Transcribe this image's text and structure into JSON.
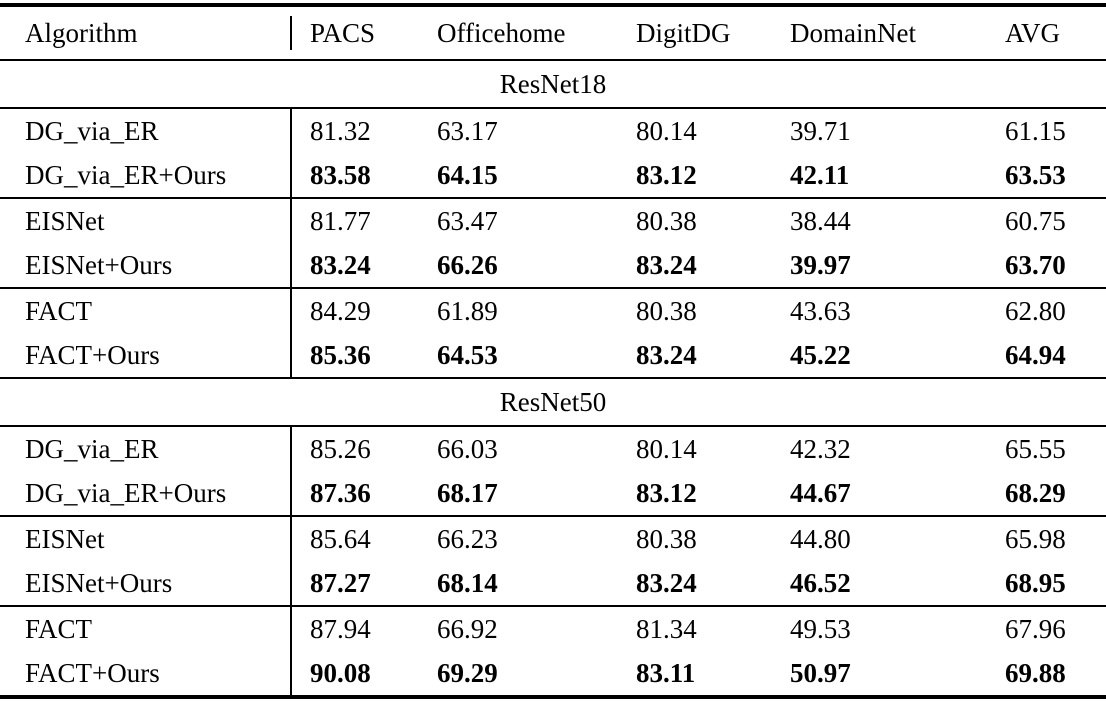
{
  "table": {
    "columns": [
      "Algorithm",
      "PACS",
      "Officehome",
      "DigitDG",
      "DomainNet",
      "AVG"
    ],
    "sections": [
      {
        "title": "ResNet18",
        "groups": [
          {
            "rows": [
              {
                "algorithm": "DG_via_ER",
                "bold": false,
                "values": [
                  "81.32",
                  "63.17",
                  "80.14",
                  "39.71",
                  "61.15"
                ]
              },
              {
                "algorithm": "DG_via_ER+Ours",
                "bold": true,
                "values": [
                  "83.58",
                  "64.15",
                  "83.12",
                  "42.11",
                  "63.53"
                ]
              }
            ]
          },
          {
            "rows": [
              {
                "algorithm": "EISNet",
                "bold": false,
                "values": [
                  "81.77",
                  "63.47",
                  "80.38",
                  "38.44",
                  "60.75"
                ]
              },
              {
                "algorithm": "EISNet+Ours",
                "bold": true,
                "values": [
                  "83.24",
                  "66.26",
                  "83.24",
                  "39.97",
                  "63.70"
                ]
              }
            ]
          },
          {
            "rows": [
              {
                "algorithm": "FACT",
                "bold": false,
                "values": [
                  "84.29",
                  "61.89",
                  "80.38",
                  "43.63",
                  "62.80"
                ]
              },
              {
                "algorithm": "FACT+Ours",
                "bold": true,
                "values": [
                  "85.36",
                  "64.53",
                  "83.24",
                  "45.22",
                  "64.94"
                ]
              }
            ]
          }
        ]
      },
      {
        "title": "ResNet50",
        "groups": [
          {
            "rows": [
              {
                "algorithm": "DG_via_ER",
                "bold": false,
                "values": [
                  "85.26",
                  "66.03",
                  "80.14",
                  "42.32",
                  "65.55"
                ]
              },
              {
                "algorithm": "DG_via_ER+Ours",
                "bold": true,
                "values": [
                  "87.36",
                  "68.17",
                  "83.12",
                  "44.67",
                  "68.29"
                ]
              }
            ]
          },
          {
            "rows": [
              {
                "algorithm": "EISNet",
                "bold": false,
                "values": [
                  "85.64",
                  "66.23",
                  "80.38",
                  "44.80",
                  "65.98"
                ]
              },
              {
                "algorithm": "EISNet+Ours",
                "bold": true,
                "values": [
                  "87.27",
                  "68.14",
                  "83.24",
                  "46.52",
                  "68.95"
                ]
              }
            ]
          },
          {
            "rows": [
              {
                "algorithm": "FACT",
                "bold": false,
                "values": [
                  "87.94",
                  "66.92",
                  "81.34",
                  "49.53",
                  "67.96"
                ]
              },
              {
                "algorithm": "FACT+Ours",
                "bold": true,
                "values": [
                  "90.08",
                  "69.29",
                  "83.11",
                  "50.97",
                  "69.88"
                ]
              }
            ]
          }
        ]
      }
    ]
  }
}
